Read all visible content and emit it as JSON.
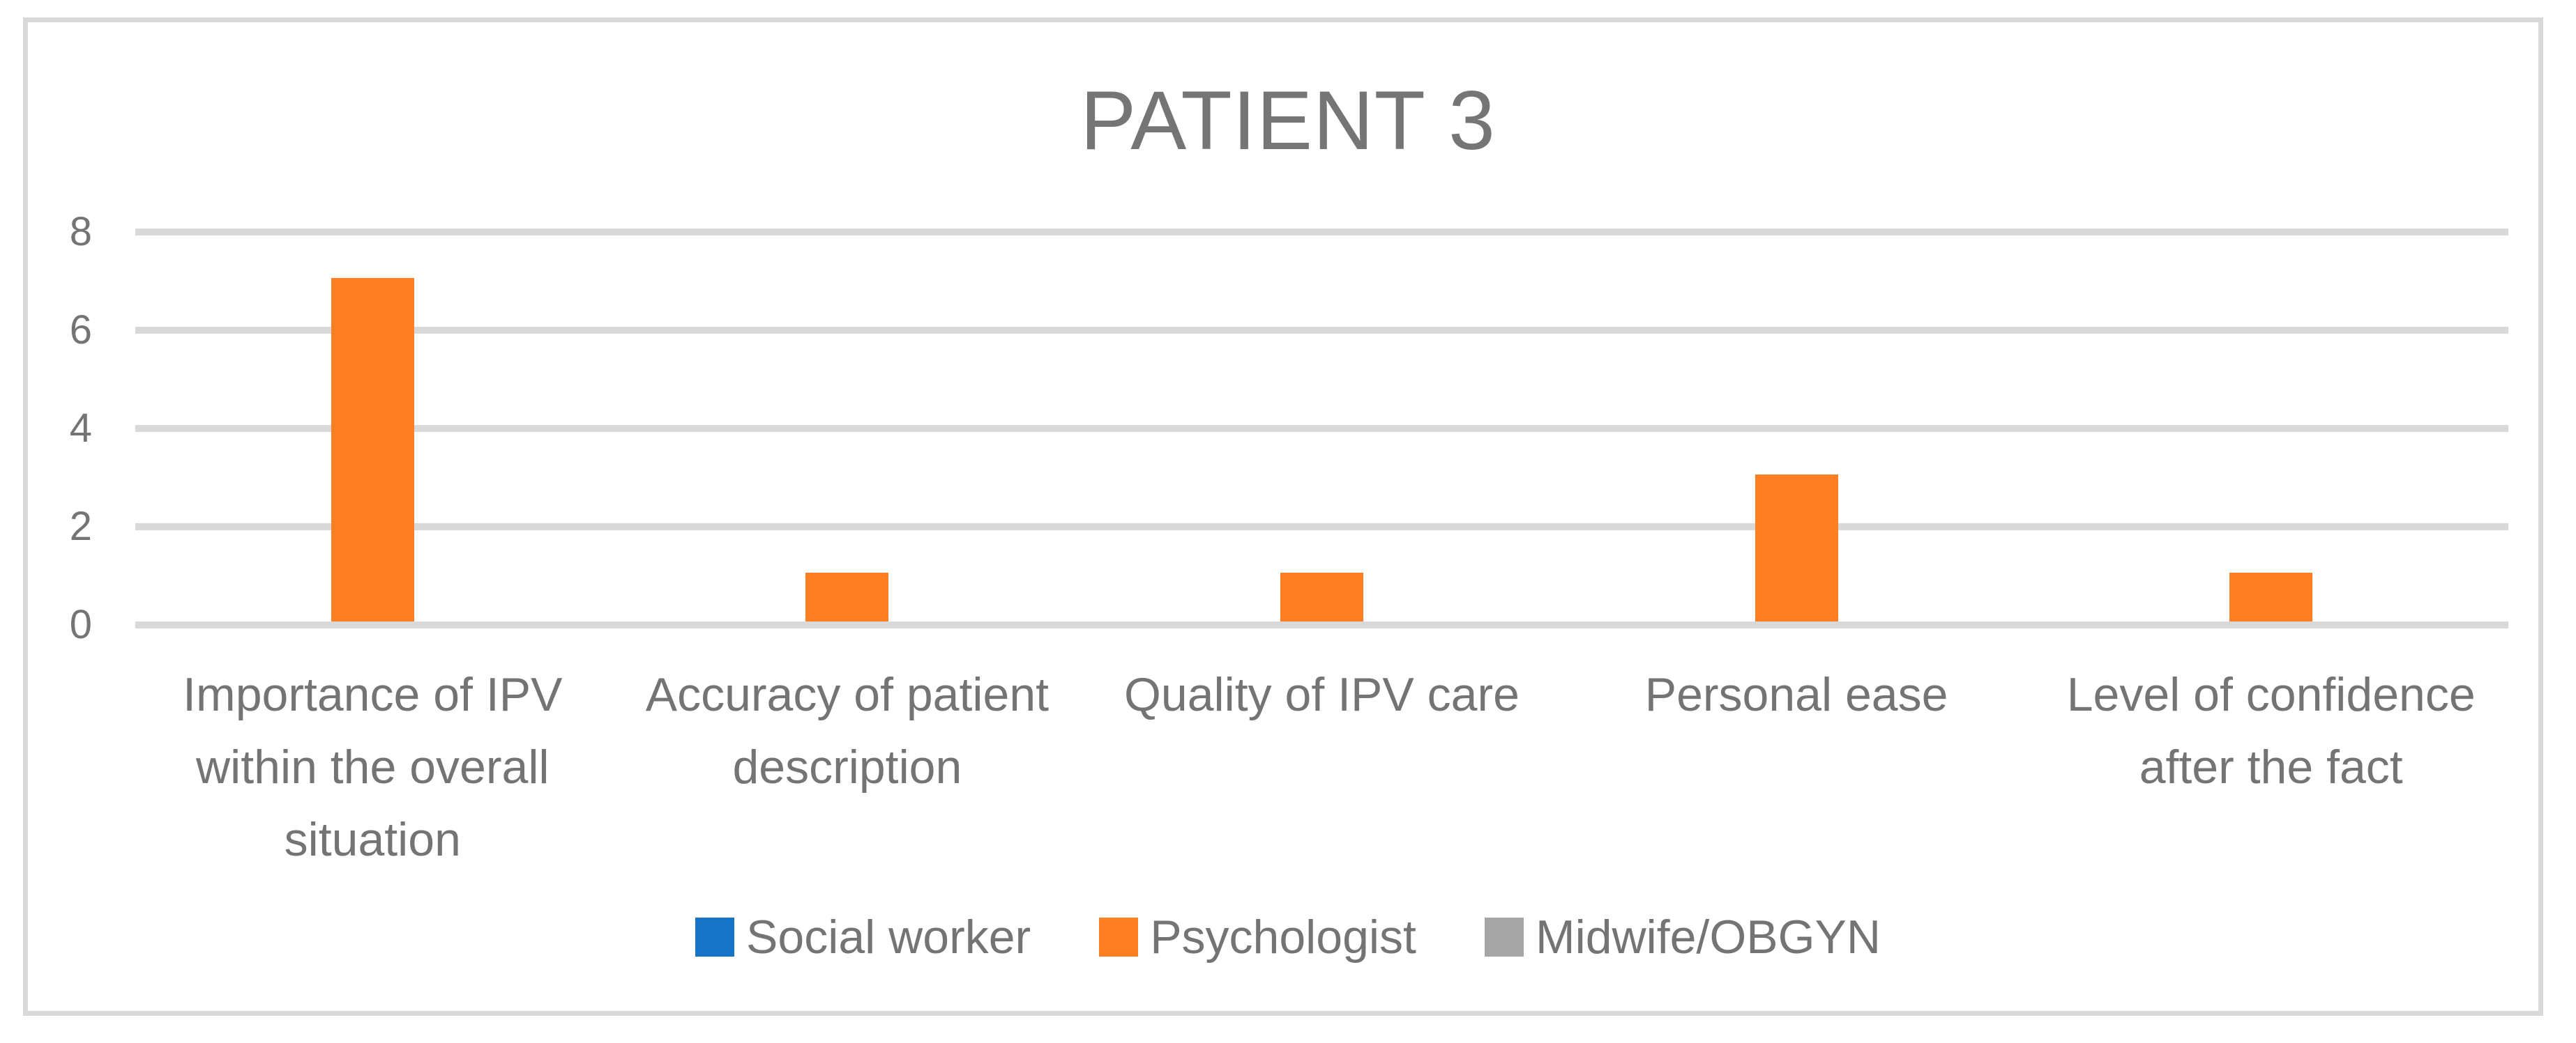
{
  "chart_data": {
    "type": "bar",
    "title": "PATIENT 3",
    "categories": [
      "Importance of IPV within the overall situation",
      "Accuracy of patient description",
      "Quality of IPV care",
      "Personal ease",
      "Level of confidence after the fact"
    ],
    "series": [
      {
        "name": "Social worker",
        "color": "#1774C8",
        "values": [
          0,
          0,
          0,
          0,
          0
        ]
      },
      {
        "name": "Psychologist",
        "color": "#FD7E23",
        "values": [
          7,
          1,
          1,
          3,
          1
        ]
      },
      {
        "name": "Midwife/OBGYN",
        "color": "#A6A6A6",
        "values": [
          0,
          0,
          0,
          0,
          0
        ]
      }
    ],
    "ylim": [
      0,
      8
    ],
    "yticks": [
      0,
      2,
      4,
      6,
      8
    ],
    "xlabel": "",
    "ylabel": "",
    "grid": "horizontal",
    "legend_position": "bottom"
  },
  "colors": {
    "gridline": "#D9D9D9",
    "chart_border": "#D9D9D9",
    "text": "#747474",
    "title_text": "#757575",
    "background": "#FFFFFF"
  }
}
